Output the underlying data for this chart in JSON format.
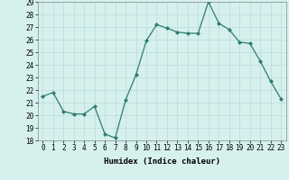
{
  "x": [
    0,
    1,
    2,
    3,
    4,
    5,
    6,
    7,
    8,
    9,
    10,
    11,
    12,
    13,
    14,
    15,
    16,
    17,
    18,
    19,
    20,
    21,
    22,
    23
  ],
  "y": [
    21.5,
    21.8,
    20.3,
    20.1,
    20.1,
    20.7,
    18.5,
    18.2,
    21.2,
    23.2,
    25.9,
    27.2,
    26.9,
    26.6,
    26.5,
    26.5,
    29.0,
    27.3,
    26.8,
    25.8,
    25.7,
    24.3,
    22.7,
    21.3
  ],
  "xlabel": "Humidex (Indice chaleur)",
  "ylim": [
    18,
    29
  ],
  "xlim_min": -0.5,
  "xlim_max": 23.5,
  "yticks": [
    18,
    19,
    20,
    21,
    22,
    23,
    24,
    25,
    26,
    27,
    28,
    29
  ],
  "xticks": [
    0,
    1,
    2,
    3,
    4,
    5,
    6,
    7,
    8,
    9,
    10,
    11,
    12,
    13,
    14,
    15,
    16,
    17,
    18,
    19,
    20,
    21,
    22,
    23
  ],
  "line_color": "#2e7d6e",
  "marker": "D",
  "marker_size": 2.0,
  "bg_color": "#d6f0ee",
  "grid_color": "#b8dcd8",
  "tick_fontsize": 5.5,
  "xlabel_fontsize": 6.5
}
